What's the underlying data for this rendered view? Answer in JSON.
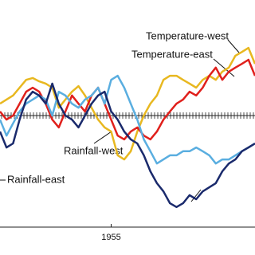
{
  "chart_data": {
    "type": "line",
    "x": [
      1938,
      1939,
      1940,
      1941,
      1942,
      1943,
      1944,
      1945,
      1946,
      1947,
      1948,
      1949,
      1950,
      1951,
      1952,
      1953,
      1954,
      1955,
      1956,
      1957,
      1958,
      1959,
      1960,
      1961,
      1962,
      1963,
      1964,
      1965,
      1966,
      1967,
      1968,
      1969,
      1970,
      1971,
      1972,
      1973,
      1974,
      1975,
      1976,
      1977
    ],
    "xlim": [
      1938,
      1977
    ],
    "xticks": [
      1955
    ],
    "ylim": [
      -3,
      3
    ],
    "series": [
      {
        "name": "Temperature-west",
        "color": "#e8b820",
        "values": [
          0.32,
          0.43,
          0.54,
          0.75,
          0.96,
          1.01,
          0.92,
          0.86,
          0.75,
          0.21,
          0.43,
          0.64,
          0.79,
          0.54,
          0.21,
          -0.11,
          -0.32,
          -0.43,
          -1.07,
          -1.18,
          -0.96,
          -0.43,
          0,
          0.32,
          0.54,
          0.96,
          1.07,
          1.07,
          0.96,
          0.86,
          0.75,
          0.96,
          1.07,
          0.96,
          1.18,
          1.29,
          1.61,
          1.71,
          1.82,
          1.39
        ]
      },
      {
        "name": "Temperature-east",
        "color": "#e0201c",
        "values": [
          0.11,
          -0.11,
          0,
          0.32,
          0.64,
          0.75,
          0.64,
          0.32,
          -0.11,
          -0.32,
          0.11,
          0.54,
          0.32,
          0.11,
          0.54,
          0.75,
          0.32,
          -0.11,
          -0.54,
          -0.64,
          -0.43,
          -0.32,
          -0.54,
          -0.64,
          -0.43,
          -0.11,
          0.11,
          0.32,
          0.43,
          0.64,
          0.54,
          0.75,
          1.07,
          1.29,
          0.96,
          1.18,
          1.29,
          1.39,
          1.5,
          1.07
        ]
      },
      {
        "name": "Rainfall-west",
        "color": "#5aaee0",
        "values": [
          -0.11,
          -0.54,
          -0.21,
          0.11,
          0.32,
          0.43,
          0.54,
          0.43,
          0,
          0.64,
          0.54,
          0.32,
          0.21,
          0.43,
          0.54,
          0.75,
          0.32,
          0.96,
          1.07,
          0.75,
          0.32,
          -0.11,
          -0.64,
          -0.96,
          -1.29,
          -1.18,
          -1.07,
          -1.07,
          -0.96,
          -0.96,
          -0.86,
          -0.96,
          -1.07,
          -1.29,
          -1.18,
          -1.18,
          -1.07,
          -0.96,
          -0.86,
          -0.75
        ]
      },
      {
        "name": "Rainfall-east",
        "color": "#1a2a6c",
        "values": [
          -0.43,
          -0.86,
          -0.75,
          -0.11,
          0.43,
          0.64,
          0.54,
          0.32,
          0.86,
          0.32,
          0,
          -0.11,
          -0.32,
          0,
          0.32,
          0.54,
          0.64,
          0.11,
          -0.11,
          -0.43,
          -0.64,
          -0.75,
          -1.07,
          -1.5,
          -1.82,
          -2.04,
          -2.36,
          -2.46,
          -2.36,
          -2.14,
          -2.25,
          -2.04,
          -1.93,
          -1.82,
          -1.5,
          -1.29,
          -1.18,
          -0.96,
          -0.86,
          -0.75
        ]
      }
    ]
  }
}
